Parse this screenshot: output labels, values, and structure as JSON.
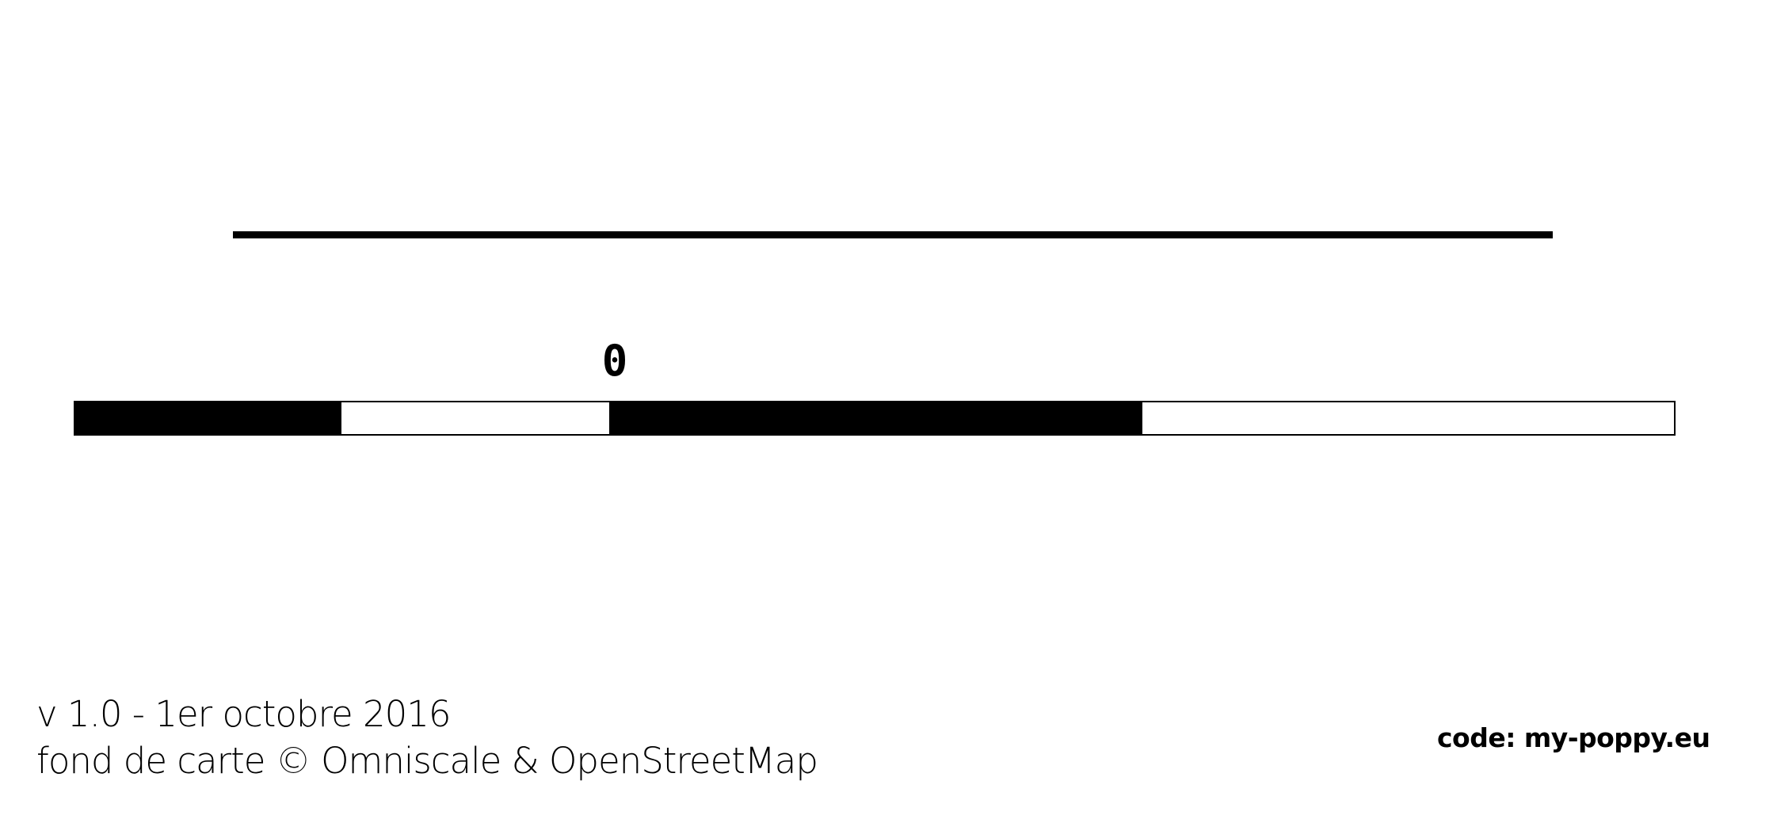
{
  "scale": {
    "zero_label": "0",
    "segment_colors": [
      "#000000",
      "#ffffff",
      "#000000",
      "#ffffff"
    ]
  },
  "footer": {
    "version": "v 1.0 - 1er octobre 2016",
    "attribution": "fond de carte © Omniscale & OpenStreetMap",
    "code": "code: my-poppy.eu"
  }
}
